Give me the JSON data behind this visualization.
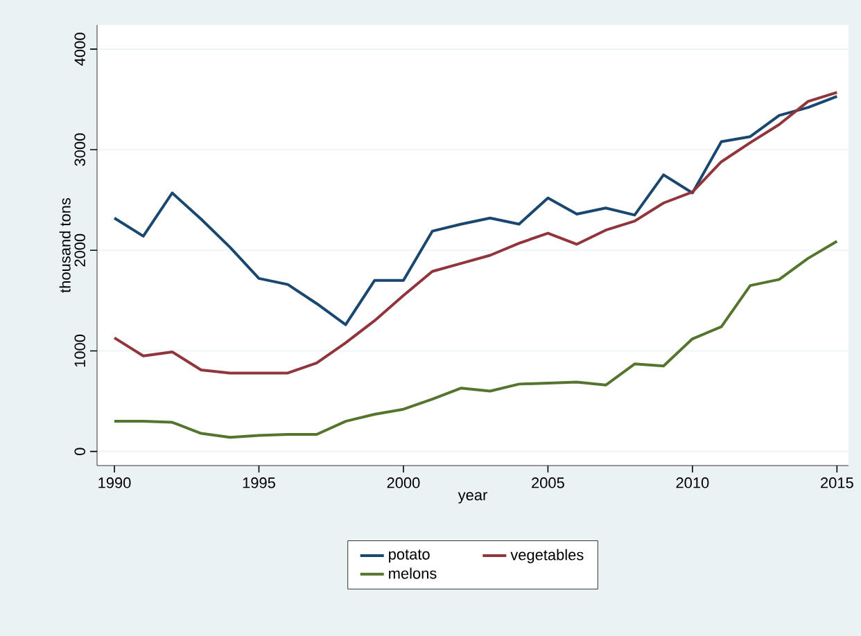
{
  "chart_data": {
    "type": "line",
    "xlabel": "year",
    "ylabel": "thousand tons",
    "x": [
      1990,
      1991,
      1992,
      1993,
      1994,
      1995,
      1996,
      1997,
      1998,
      1999,
      2000,
      2001,
      2002,
      2003,
      2004,
      2005,
      2006,
      2007,
      2008,
      2009,
      2010,
      2011,
      2012,
      2013,
      2014,
      2015
    ],
    "series": [
      {
        "name": "potato",
        "color": "#1a476f",
        "values": [
          2320,
          2140,
          2570,
          2310,
          2030,
          1720,
          1660,
          1470,
          1260,
          1700,
          1700,
          2190,
          2260,
          2320,
          2260,
          2520,
          2360,
          2420,
          2350,
          2750,
          2570,
          3080,
          3130,
          3340,
          3420,
          3530
        ]
      },
      {
        "name": "vegetables",
        "color": "#90353b",
        "values": [
          1130,
          950,
          990,
          810,
          780,
          780,
          780,
          880,
          1080,
          1300,
          1550,
          1790,
          1870,
          1950,
          2070,
          2170,
          2060,
          2200,
          2290,
          2470,
          2580,
          2880,
          3070,
          3250,
          3480,
          3570
        ]
      },
      {
        "name": "melons",
        "color": "#55752f",
        "values": [
          300,
          300,
          290,
          180,
          140,
          160,
          170,
          170,
          300,
          370,
          420,
          520,
          630,
          600,
          670,
          680,
          690,
          660,
          870,
          850,
          1120,
          1240,
          1650,
          1710,
          1920,
          2090
        ]
      }
    ],
    "xlim": [
      1989.4,
      2015.4
    ],
    "ylim": [
      -140,
      4240
    ],
    "xticks": [
      1990,
      1995,
      2000,
      2005,
      2010,
      2015
    ],
    "yticks": [
      0,
      1000,
      2000,
      3000,
      4000
    ],
    "grid": "y",
    "legend": "bottom",
    "marker": "none",
    "line_style": "solid"
  }
}
